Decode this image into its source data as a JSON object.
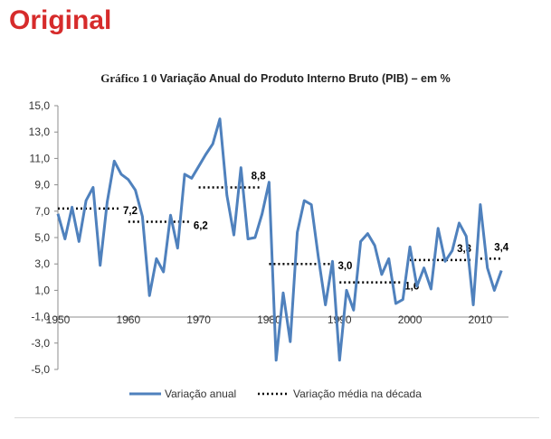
{
  "header": {
    "label": "Original"
  },
  "chart_data": {
    "type": "line",
    "title_part1": "Gráfico 1 0",
    "title_part2": "Variação Anual do Produto Interno Bruto (PIB) – em %",
    "xlabel": "",
    "ylabel": "",
    "xlim": [
      1950,
      2014
    ],
    "ylim": [
      -5,
      15
    ],
    "y_ticks": [
      "15,0",
      "13,0",
      "11,0",
      "9,0",
      "7,0",
      "5,0",
      "3,0",
      "1,0",
      "-1,0",
      "-3,0",
      "-5,0"
    ],
    "y_tick_values": [
      15,
      13,
      11,
      9,
      7,
      5,
      3,
      1,
      -1,
      -3,
      -5
    ],
    "x_ticks": [
      "1950",
      "1960",
      "1970",
      "1980",
      "1990",
      "2000",
      "2010"
    ],
    "x_tick_values": [
      1950,
      1960,
      1970,
      1980,
      1990,
      2000,
      2010
    ],
    "grid": false,
    "legend_position": "bottom",
    "colors": {
      "series": "#4f81bd",
      "average": "#000000",
      "axis": "#8c8c8c"
    },
    "series": [
      {
        "name": "Variação anual",
        "x": [
          1950,
          1951,
          1952,
          1953,
          1954,
          1955,
          1956,
          1957,
          1958,
          1959,
          1960,
          1961,
          1962,
          1963,
          1964,
          1965,
          1966,
          1967,
          1968,
          1969,
          1970,
          1971,
          1972,
          1973,
          1974,
          1975,
          1976,
          1977,
          1978,
          1979,
          1980,
          1981,
          1982,
          1983,
          1984,
          1985,
          1986,
          1987,
          1988,
          1989,
          1990,
          1991,
          1992,
          1993,
          1994,
          1995,
          1996,
          1997,
          1998,
          1999,
          2000,
          2001,
          2002,
          2003,
          2004,
          2005,
          2006,
          2007,
          2008,
          2009,
          2010,
          2011,
          2012,
          2013
        ],
        "values": [
          6.8,
          4.9,
          7.3,
          4.7,
          7.8,
          8.8,
          2.9,
          7.7,
          10.8,
          9.8,
          9.4,
          8.6,
          6.6,
          0.6,
          3.4,
          2.4,
          6.7,
          4.2,
          9.8,
          9.5,
          10.4,
          11.3,
          12.1,
          14.0,
          8.2,
          5.2,
          10.3,
          4.9,
          5.0,
          6.8,
          9.2,
          -4.3,
          0.8,
          -2.9,
          5.4,
          7.8,
          7.5,
          3.5,
          -0.1,
          3.2,
          -4.3,
          1.0,
          -0.5,
          4.7,
          5.3,
          4.4,
          2.2,
          3.4,
          0.0,
          0.3,
          4.3,
          1.3,
          2.7,
          1.1,
          5.7,
          3.2,
          4.0,
          6.1,
          5.1,
          -0.1,
          7.5,
          2.7,
          1.0,
          2.5
        ]
      },
      {
        "name": "Variação média na década",
        "segments": [
          {
            "x": [
              1950,
              1959
            ],
            "value": 7.2,
            "label": "7,2"
          },
          {
            "x": [
              1960,
              1969
            ],
            "value": 6.2,
            "label": "6,2"
          },
          {
            "x": [
              1970,
              1979
            ],
            "value": 8.8,
            "label": "8,8"
          },
          {
            "x": [
              1980,
              1989
            ],
            "value": 3.0,
            "label": "3,0"
          },
          {
            "x": [
              1990,
              1999
            ],
            "value": 1.6,
            "label": "1,6"
          },
          {
            "x": [
              2000,
              2009
            ],
            "value": 3.3,
            "label": "3,3"
          },
          {
            "x": [
              2010,
              2013
            ],
            "value": 3.4,
            "label": "3,4"
          }
        ]
      }
    ]
  }
}
